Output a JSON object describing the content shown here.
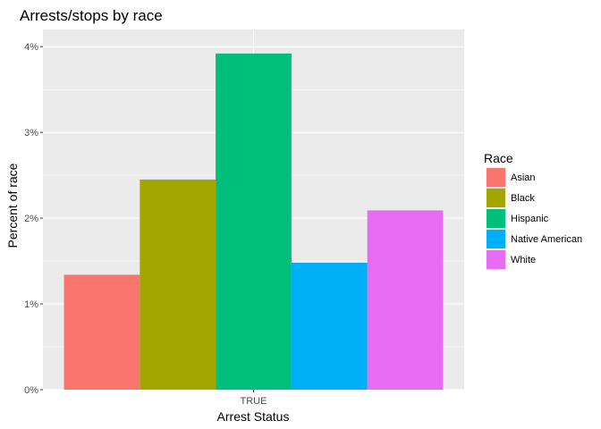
{
  "chart_data": {
    "type": "bar",
    "title": "Arrests/stops by race",
    "xlabel": "Arrest Status",
    "ylabel": "Percent of race",
    "categories": [
      "TRUE"
    ],
    "ylim": [
      0,
      0.042
    ],
    "y_ticks": [
      0,
      0.01,
      0.02,
      0.03,
      0.04
    ],
    "y_tick_labels": [
      "0%",
      "1%",
      "2%",
      "3%",
      "4%"
    ],
    "grid": true,
    "legend_position": "right",
    "legend_title": "Race",
    "series": [
      {
        "name": "Asian",
        "values": [
          0.0134
        ],
        "color": "#F8766D"
      },
      {
        "name": "Black",
        "values": [
          0.0245
        ],
        "color": "#A3A500"
      },
      {
        "name": "Hispanic",
        "values": [
          0.0392
        ],
        "color": "#00BF7D"
      },
      {
        "name": "Native American",
        "values": [
          0.0148
        ],
        "color": "#00B0F6"
      },
      {
        "name": "White",
        "values": [
          0.0209
        ],
        "color": "#E76BF3"
      }
    ]
  },
  "colors": {
    "panel_background": "#EBEBEB",
    "grid_major": "#FFFFFF"
  }
}
